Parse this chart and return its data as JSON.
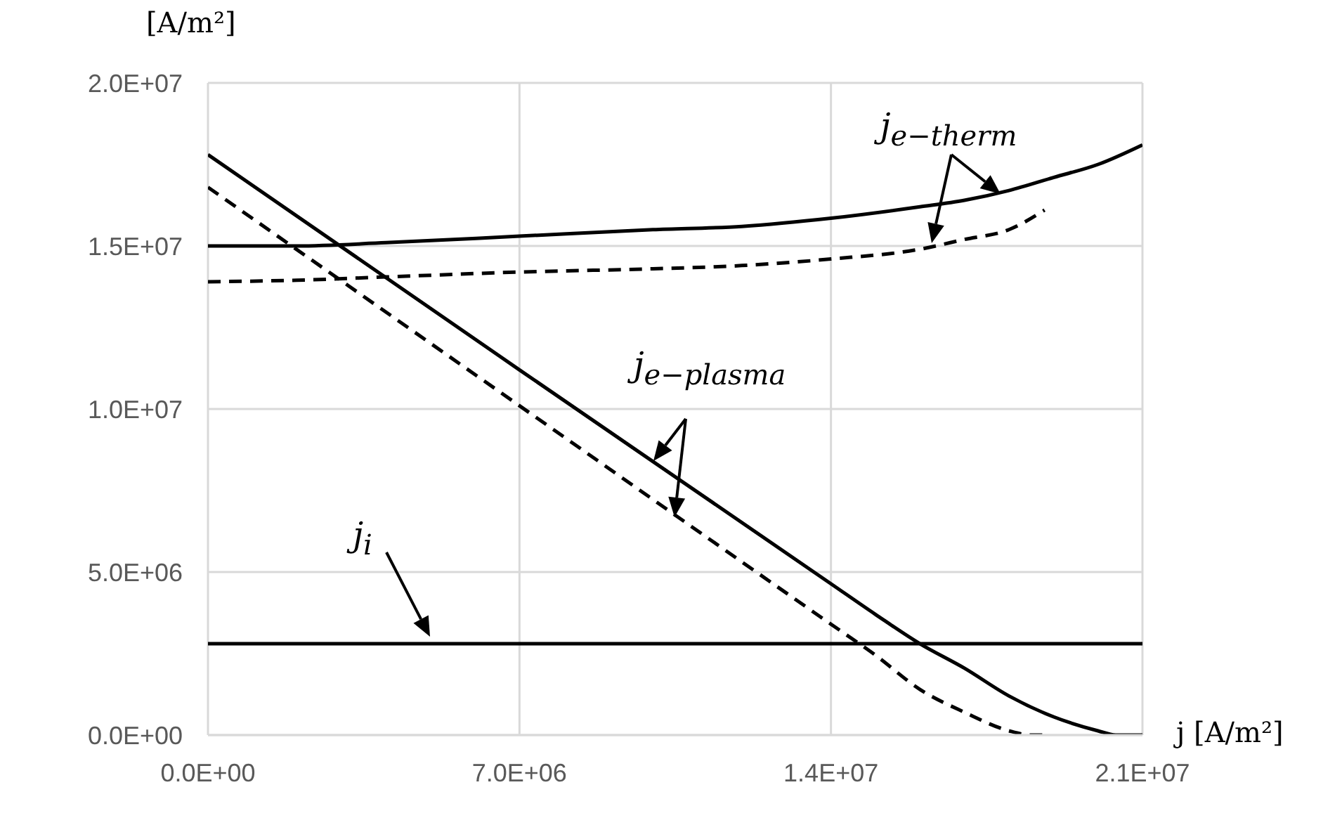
{
  "chart_data": {
    "type": "line",
    "xlabel": "j [A/m²]",
    "ylabel": "[A/m²]",
    "xlim": [
      0,
      21000000
    ],
    "ylim": [
      0,
      20000000
    ],
    "xticks": [
      {
        "value": 0,
        "label": "0.0E+00"
      },
      {
        "value": 7000000,
        "label": "7.0E+06"
      },
      {
        "value": 14000000,
        "label": "1.4E+07"
      },
      {
        "value": 21000000,
        "label": "2.1E+07"
      }
    ],
    "yticks": [
      {
        "value": 0,
        "label": "0.0E+00"
      },
      {
        "value": 5000000,
        "label": "5.0E+06"
      },
      {
        "value": 10000000,
        "label": "1.0E+07"
      },
      {
        "value": 15000000,
        "label": "1.5E+07"
      },
      {
        "value": 20000000,
        "label": "2.0E+07"
      }
    ],
    "grid": true,
    "marker": "none",
    "series": [
      {
        "color": "#000000",
        "line_style": "solid",
        "x": [
          0,
          2000000,
          4000000,
          7000000,
          10000000,
          12000000,
          14000000,
          16000000,
          17000000,
          18000000,
          19000000,
          20000000,
          21000000
        ],
        "values": [
          15000000,
          15000000,
          15100000,
          15300000,
          15500000,
          15600000,
          15850000,
          16200000,
          16400000,
          16700000,
          17100000,
          17500000,
          18100000
        ]
      },
      {
        "color": "#000000",
        "line_style": "dashed",
        "x": [
          0,
          2000000,
          4000000,
          7000000,
          10000000,
          12000000,
          14000000,
          16000000,
          17000000,
          18000000,
          18800000
        ],
        "values": [
          13900000,
          13950000,
          14050000,
          14200000,
          14300000,
          14400000,
          14600000,
          14900000,
          15200000,
          15500000,
          16100000
        ]
      },
      {
        "color": "#000000",
        "line_style": "solid",
        "x": [
          0,
          7000000,
          14000000,
          15000000,
          16000000,
          17000000,
          18000000,
          19000000,
          20000000,
          20400000,
          21000000
        ],
        "values": [
          17800000,
          11200000,
          4640000,
          3700000,
          2800000,
          2050000,
          1200000,
          560000,
          130000,
          0,
          0
        ]
      },
      {
        "color": "#000000",
        "line_style": "dashed",
        "x": [
          0,
          7000000,
          14000000,
          15000000,
          16000000,
          17000000,
          18000000,
          18500000,
          18800000
        ],
        "values": [
          16800000,
          10100000,
          3400000,
          2450000,
          1400000,
          700000,
          130000,
          0,
          0
        ]
      },
      {
        "color": "#000000",
        "line_style": "solid",
        "x": [
          0,
          21000000
        ],
        "values": [
          2800000,
          2800000
        ]
      }
    ],
    "annotations": [
      "j$_{e−therm}$",
      "j$_{e−plasma}$",
      "j$_{i}$"
    ]
  }
}
